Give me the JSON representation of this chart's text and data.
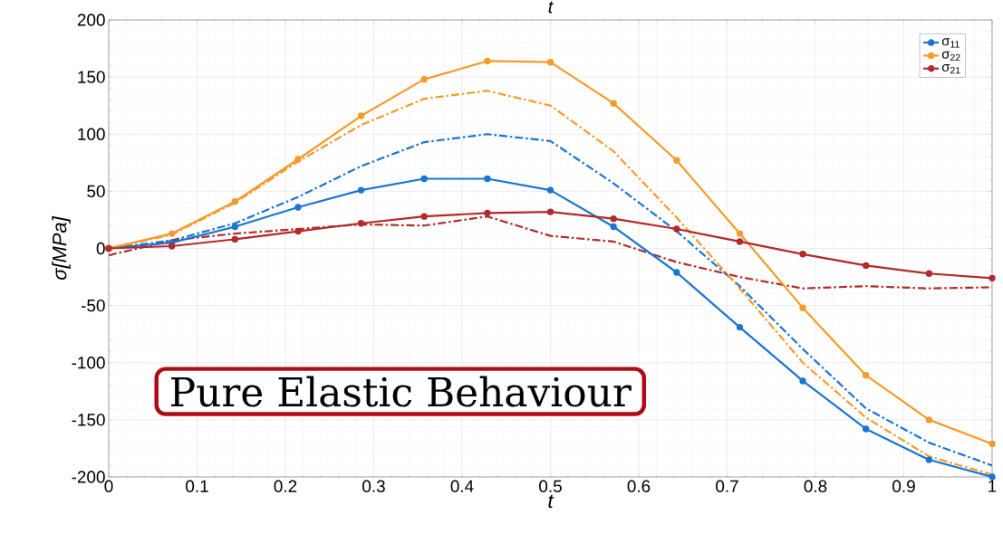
{
  "chart_data": {
    "type": "line",
    "title": "t",
    "xlabel": "t",
    "ylabel": "σ[MPa]",
    "x": [
      0,
      0.0714,
      0.1429,
      0.2143,
      0.2857,
      0.3571,
      0.4286,
      0.5,
      0.5714,
      0.6429,
      0.7143,
      0.7857,
      0.8571,
      0.9286,
      1
    ],
    "series": [
      {
        "color": "#1a75d2",
        "line_style": "dashed",
        "marker": "none",
        "values": [
          0,
          7,
          22,
          45,
          72,
          93,
          100,
          94,
          57,
          15,
          -33,
          -88,
          -140,
          -170,
          -190
        ]
      },
      {
        "color": "#f59b2a",
        "line_style": "dashed",
        "marker": "none",
        "values": [
          0,
          12,
          40,
          76,
          108,
          131,
          138,
          125,
          85,
          27,
          -35,
          -100,
          -148,
          -182,
          -198
        ]
      },
      {
        "color": "#b22a2a",
        "line_style": "dashed",
        "marker": "none",
        "values": [
          -6,
          7,
          13,
          17,
          21,
          20,
          28,
          11,
          6,
          -12,
          -25,
          -35,
          -33,
          -35,
          -34
        ]
      },
      {
        "name": "σ$_{11}$",
        "color": "#1a75d2",
        "values": [
          0,
          5,
          19,
          36,
          51,
          61,
          61,
          51,
          19,
          -21,
          -69,
          -116,
          -158,
          -185,
          -200
        ]
      },
      {
        "name": "σ$_{22}$",
        "color": "#f59b2a",
        "values": [
          0,
          13,
          41,
          78,
          116,
          148,
          164,
          163,
          127,
          77,
          13,
          -52,
          -111,
          -150,
          -171
        ]
      },
      {
        "name": "σ$_{21}$",
        "color": "#b22a2a",
        "values": [
          0,
          2,
          8,
          15,
          22,
          28,
          31,
          32,
          26,
          17,
          6,
          -5,
          -15,
          -22,
          -26
        ]
      }
    ],
    "xlim": [
      0,
      1
    ],
    "ylim": [
      -200,
      200
    ],
    "xticks": [
      0,
      0.1,
      0.2,
      0.3,
      0.4,
      0.5,
      0.6,
      0.7,
      0.8,
      0.9,
      1
    ],
    "yticks": [
      -200,
      -150,
      -100,
      -50,
      0,
      50,
      100,
      150,
      200
    ],
    "grid": true,
    "legend": "top right",
    "marker": "circle",
    "line_style": "solid",
    "annotations": [
      "Pure Elastic Behaviour"
    ]
  }
}
